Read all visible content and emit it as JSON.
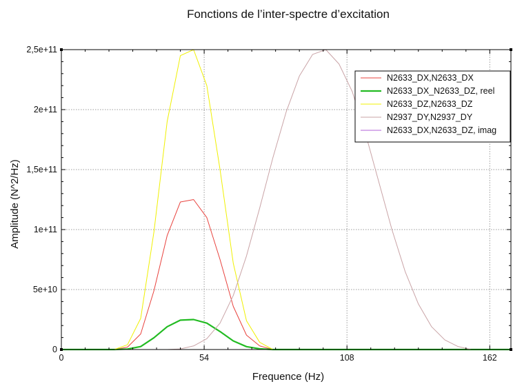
{
  "chart_data": {
    "type": "line",
    "title": "Fonctions de l’inter-spectre d’excitation",
    "xlabel": "Frequence (Hz)",
    "ylabel": "Amplitude (N^2/Hz)",
    "xlim": [
      0,
      170
    ],
    "ylim": [
      0,
      250000000000.0
    ],
    "x_ticks": [
      0,
      54,
      108,
      162
    ],
    "x_tick_labels": [
      "0",
      "54",
      "108",
      "162"
    ],
    "y_ticks": [
      0,
      50000000000.0,
      100000000000.0,
      150000000000.0,
      200000000000.0,
      250000000000.0
    ],
    "y_tick_labels": [
      "0",
      "5e+10",
      "1e+11",
      "1,5e+11",
      "2e+11",
      "2,5e+11"
    ],
    "grid": true,
    "legend_position": "top-right",
    "series": [
      {
        "name": "N2633_DX,N2633_DX",
        "color": "#e8413c",
        "x": [
          0,
          20,
          25,
          30,
          35,
          40,
          45,
          50,
          55,
          60,
          65,
          70,
          75,
          80,
          90,
          170
        ],
        "y": [
          0,
          0,
          2000000000.0,
          13000000000.0,
          49000000000.0,
          95000000000.0,
          123000000000.0,
          125000000000.0,
          110000000000.0,
          75000000000.0,
          36000000000.0,
          12000000000.0,
          3000000000.0,
          0,
          0,
          0
        ]
      },
      {
        "name": "N2633_DX_N2633_DZ, reel",
        "color": "#22bb22",
        "x": [
          0,
          20,
          25,
          30,
          35,
          40,
          45,
          50,
          55,
          60,
          65,
          70,
          75,
          80,
          90,
          170
        ],
        "y": [
          0,
          0,
          400000000.0,
          2500000000.0,
          9800000000.0,
          19000000000.0,
          24500000000.0,
          25000000000.0,
          22000000000.0,
          15000000000.0,
          7200000000.0,
          2400000000.0,
          600000000.0,
          0,
          0,
          0
        ]
      },
      {
        "name": "N2633_DZ,N2633_DZ",
        "color": "#f0f000",
        "x": [
          0,
          20,
          25,
          30,
          35,
          40,
          45,
          50,
          55,
          60,
          65,
          70,
          75,
          80,
          90,
          170
        ],
        "y": [
          0,
          0,
          4000000000.0,
          26000000000.0,
          98000000000.0,
          190000000000.0,
          245000000000.0,
          250000000000.0,
          220000000000.0,
          150000000000.0,
          72000000000.0,
          24000000000.0,
          6000000000.0,
          0,
          0,
          0
        ]
      },
      {
        "name": "N2937_DY,N2937_DY",
        "color": "#c9a3a6",
        "x": [
          0,
          40,
          45,
          50,
          55,
          60,
          65,
          70,
          75,
          80,
          85,
          90,
          95,
          100,
          105,
          110,
          115,
          120,
          125,
          130,
          135,
          140,
          145,
          150,
          155,
          170
        ],
        "y": [
          0,
          0,
          500000000.0,
          3000000000.0,
          9000000000.0,
          22000000000.0,
          45000000000.0,
          78000000000.0,
          118000000000.0,
          160000000000.0,
          198000000000.0,
          228000000000.0,
          246000000000.0,
          250000000000.0,
          238000000000.0,
          215000000000.0,
          180000000000.0,
          140000000000.0,
          100000000000.0,
          65000000000.0,
          38000000000.0,
          19000000000.0,
          8000000000.0,
          2500000000.0,
          0,
          0
        ]
      },
      {
        "name": "N2633_DX,N2633_DZ, imag",
        "color": "#b060d8",
        "x": [
          0,
          170
        ],
        "y": [
          0,
          0
        ]
      }
    ]
  }
}
